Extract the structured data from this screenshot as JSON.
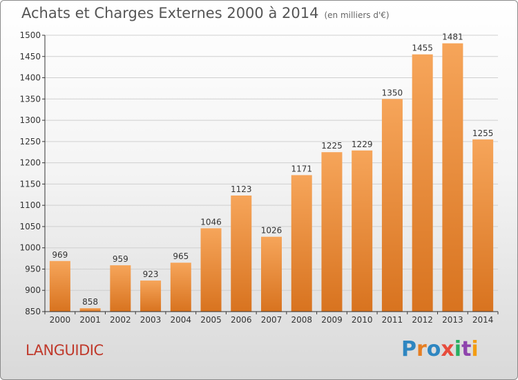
{
  "header": {
    "title": "Achats et Charges Externes 2000 à 2014",
    "subtitle": "(en milliers d'€)"
  },
  "footer": {
    "commune": "LANGUIDIC",
    "logo_letters": [
      "P",
      "r",
      "o",
      "x",
      "i",
      "t",
      "i"
    ]
  },
  "chart_data": {
    "type": "bar",
    "title": "Achats et Charges Externes 2000 à 2014",
    "subtitle": "(en milliers d'€)",
    "categories": [
      "2000",
      "2001",
      "2002",
      "2003",
      "2004",
      "2005",
      "2006",
      "2007",
      "2008",
      "2009",
      "2010",
      "2011",
      "2012",
      "2013",
      "2014"
    ],
    "values": [
      969,
      858,
      959,
      923,
      965,
      1046,
      1123,
      1026,
      1171,
      1225,
      1229,
      1350,
      1455,
      1481,
      1255
    ],
    "ylim": [
      850,
      1500
    ],
    "yticks": [
      850,
      900,
      950,
      1000,
      1050,
      1100,
      1150,
      1200,
      1250,
      1300,
      1350,
      1400,
      1450,
      1500
    ],
    "grid": true,
    "colors": {
      "bar_top": "#f6a55a",
      "bar_bottom": "#d8731f",
      "grid": "#cfcfcf",
      "axis": "#333333"
    }
  }
}
